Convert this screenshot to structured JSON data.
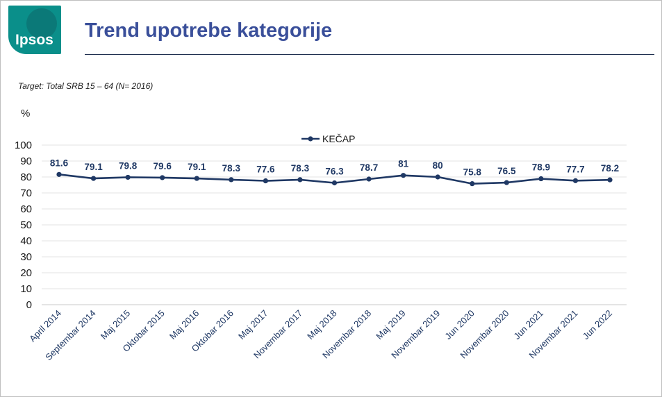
{
  "header": {
    "logo_text": "Ipsos",
    "title": "Trend upotrebe kategorije"
  },
  "target_note": "Target: Total SRB 15 – 64 (N= 2016)",
  "unit_label": "%",
  "colors": {
    "title": "#3a4f9a",
    "series": "#1f3864",
    "logo": "#0a8f8a"
  },
  "chart_data": {
    "type": "line",
    "categories": [
      "April 2014",
      "Septembar 2014",
      "Maj 2015",
      "Oktobar 2015",
      "Maj 2016",
      "Oktobar 2016",
      "Maj 2017",
      "Novembar 2017",
      "Maj 2018",
      "Novembar 2018",
      "Maj 2019",
      "Novembar 2019",
      "Jun 2020",
      "Novembar 2020",
      "Jun 2021",
      "Novembar 2021",
      "Jun 2022"
    ],
    "series": [
      {
        "name": "KEČAP",
        "values": [
          81.6,
          79.1,
          79.8,
          79.6,
          79.1,
          78.3,
          77.6,
          78.3,
          76.3,
          78.7,
          81,
          80,
          75.8,
          76.5,
          78.9,
          77.7,
          78.2
        ],
        "labels": [
          "81.6",
          "79.1",
          "79.8",
          "79.6",
          "79.1",
          "78.3",
          "77.6",
          "78.3",
          "76.3",
          "78.7",
          "81",
          "80",
          "75.8",
          "76.5",
          "78.9",
          "77.7",
          "78.2"
        ]
      }
    ],
    "ylim": [
      0,
      100
    ],
    "yticks": [
      "0",
      "10",
      "20",
      "30",
      "40",
      "50",
      "60",
      "70",
      "80",
      "90",
      "100"
    ],
    "grid": true,
    "legend_position": "top-center"
  }
}
